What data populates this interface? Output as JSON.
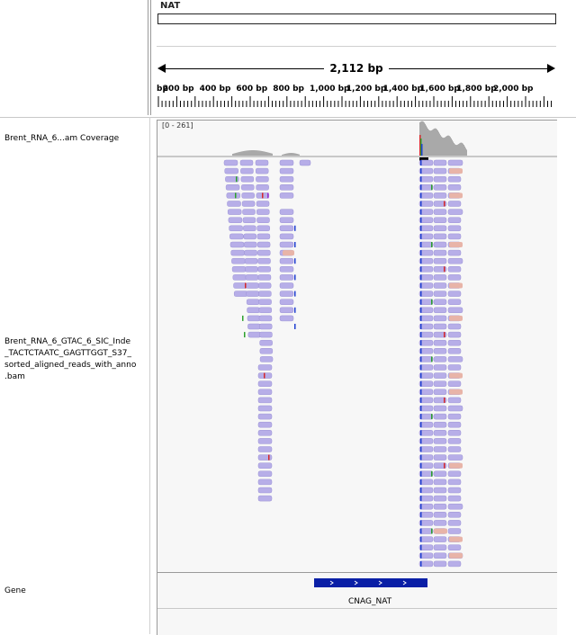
{
  "ruler": {
    "chromosome": "NAT",
    "span": "2,112 bp",
    "ticks": [
      "bp",
      "200 bp",
      "400 bp",
      "600 bp",
      "800 bp",
      "1,000 bp",
      "1,200 bp",
      "1,400 bp",
      "1,600 bp",
      "1,800 bp",
      "2,000 bp"
    ]
  },
  "tracks": {
    "coverage": {
      "name": "Brent_RNA_6...am Coverage",
      "range": "[0 - 261]"
    },
    "alignments": {
      "name_lines": [
        "Brent_RNA_6_GTAC_6_SIC_Inde",
        "_TACTCTAATC_GAGTTGGT_S37_",
        "sorted_aligned_reads_with_anno",
        ".bam"
      ]
    },
    "gene": {
      "name": "Gene",
      "feature": "CNAG_NAT"
    }
  },
  "colors": {
    "read": "#b7aee8",
    "read_border": "#9d94d6",
    "soft_read": "#e8b4a8",
    "coverage": "#a9a9a9",
    "gene": "#0a1fa6",
    "panel_bg": "#f7f7f7"
  }
}
